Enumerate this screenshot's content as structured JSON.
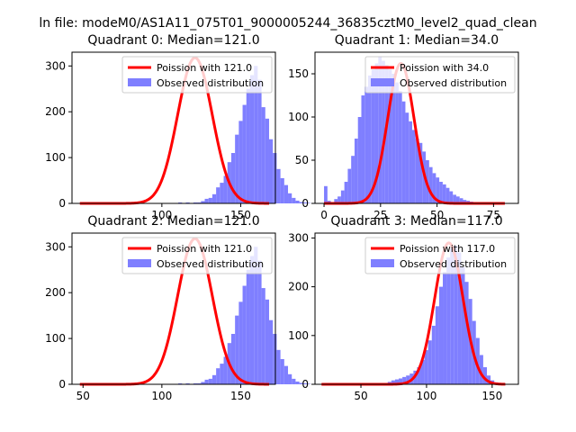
{
  "suptitle": "ln file: modeM0/AS1A11_075T01_9000005244_36835cztM0_level2_quad_clean",
  "colors": {
    "poisson": "#ff0000",
    "observed": "#7f7fff",
    "frame": "#000000",
    "background": "#ffffff"
  },
  "chart_data": [
    {
      "type": "bar",
      "title": "Quadrant 0: Median=121.0",
      "median": 121,
      "xlim": [
        43,
        172
      ],
      "ylim": [
        0,
        330
      ],
      "xticks": [
        100,
        150
      ],
      "yticks": [
        0,
        100,
        200,
        300
      ],
      "legend": [
        "Poission with 121.0",
        "Observed distribution"
      ],
      "legend_position": "upper right",
      "poisson_curve": {
        "x_range": [
          48,
          168
        ],
        "peak": 318
      },
      "bins": {
        "start": 48,
        "width": 2.4,
        "values": [
          0,
          0,
          0,
          0,
          0,
          0,
          0,
          0,
          0,
          0,
          0,
          0,
          0,
          0,
          0,
          0,
          0,
          0,
          0,
          0,
          0,
          0,
          0,
          0,
          0,
          0,
          2,
          0,
          2,
          0,
          2,
          2,
          5,
          10,
          12,
          20,
          35,
          45,
          60,
          90,
          110,
          150,
          180,
          215,
          250,
          280,
          300,
          270,
          210,
          185,
          140,
          110,
          75,
          55,
          40,
          22,
          12,
          6,
          3,
          2,
          1,
          0,
          0
        ]
      }
    },
    {
      "type": "bar",
      "title": "Quadrant 1: Median=34.0",
      "median": 34,
      "xlim": [
        -4,
        86
      ],
      "ylim": [
        0,
        175
      ],
      "xticks": [
        0,
        25,
        50,
        75
      ],
      "yticks": [
        0,
        50,
        100,
        150
      ],
      "legend": [
        "Poission with 34.0",
        "Observed distribution"
      ],
      "legend_position": "upper right",
      "poisson_curve": {
        "x_range": [
          0,
          80
        ],
        "peak": 162
      },
      "bins": {
        "start": 0,
        "width": 1.5,
        "values": [
          20,
          3,
          0,
          5,
          8,
          15,
          25,
          40,
          55,
          75,
          100,
          125,
          135,
          148,
          155,
          162,
          170,
          165,
          160,
          155,
          150,
          140,
          130,
          118,
          105,
          95,
          85,
          75,
          70,
          60,
          50,
          42,
          35,
          30,
          25,
          22,
          18,
          14,
          10,
          8,
          6,
          4,
          3,
          2,
          1,
          1,
          0,
          0,
          1,
          0,
          0,
          0,
          0,
          0
        ]
      }
    },
    {
      "type": "bar",
      "title": "Quadrant 2: Median=121.0",
      "median": 121,
      "xlim": [
        43,
        172
      ],
      "ylim": [
        0,
        330
      ],
      "xticks": [
        50,
        100,
        150
      ],
      "yticks": [
        0,
        100,
        200,
        300
      ],
      "legend": [
        "Poission with 121.0",
        "Observed distribution"
      ],
      "legend_position": "upper right",
      "poisson_curve": {
        "x_range": [
          48,
          168
        ],
        "peak": 318
      },
      "bins": {
        "start": 48,
        "width": 2.4,
        "values": [
          0,
          0,
          0,
          0,
          0,
          0,
          0,
          0,
          0,
          0,
          0,
          0,
          0,
          0,
          0,
          0,
          0,
          0,
          0,
          0,
          0,
          0,
          0,
          0,
          0,
          0,
          2,
          0,
          2,
          0,
          2,
          2,
          5,
          10,
          12,
          20,
          35,
          45,
          60,
          90,
          110,
          150,
          180,
          215,
          250,
          280,
          300,
          270,
          210,
          185,
          140,
          110,
          75,
          55,
          40,
          22,
          12,
          6,
          3,
          2,
          1,
          0,
          0
        ]
      }
    },
    {
      "type": "bar",
      "title": "Quadrant 3: Median=117.0",
      "median": 117,
      "xlim": [
        15,
        170
      ],
      "ylim": [
        0,
        310
      ],
      "xticks": [
        50,
        100,
        150
      ],
      "yticks": [
        0,
        100,
        200,
        300
      ],
      "legend": [
        "Poission with 117.0",
        "Observed distribution"
      ],
      "legend_position": "upper right",
      "poisson_curve": {
        "x_range": [
          20,
          160
        ],
        "peak": 290
      },
      "bins": {
        "start": 20,
        "width": 2.8,
        "values": [
          0,
          0,
          0,
          0,
          0,
          0,
          0,
          0,
          0,
          0,
          0,
          0,
          0,
          0,
          0,
          0,
          0,
          0,
          5,
          8,
          10,
          12,
          15,
          18,
          22,
          28,
          35,
          50,
          70,
          90,
          120,
          160,
          200,
          230,
          260,
          280,
          285,
          270,
          240,
          210,
          175,
          130,
          95,
          60,
          35,
          18,
          8,
          4,
          2,
          1,
          0
        ]
      }
    }
  ]
}
